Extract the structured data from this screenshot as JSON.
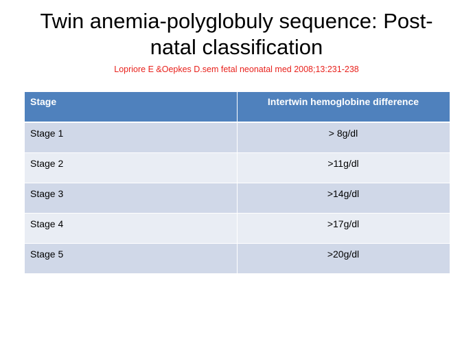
{
  "slide": {
    "title": "Twin anemia-polyglobuly sequence: Post-natal classification",
    "citation": "Lopriore E &Oepkes D.sem fetal neonatal med 2008;13:231-238"
  },
  "table": {
    "headers": [
      "Stage",
      "Intertwin hemoglobine difference"
    ],
    "rows": [
      [
        "Stage 1",
        "> 8g/dl"
      ],
      [
        "Stage 2",
        ">11g/dl"
      ],
      [
        "Stage 3",
        ">14g/dl"
      ],
      [
        "Stage 4",
        ">17g/dl"
      ],
      [
        "Stage 5",
        ">20g/dl"
      ]
    ]
  },
  "colors": {
    "header_bg": "#4f81bd",
    "row_odd": "#d0d8e8",
    "row_even": "#e9edf4",
    "citation": "#e8211c"
  }
}
